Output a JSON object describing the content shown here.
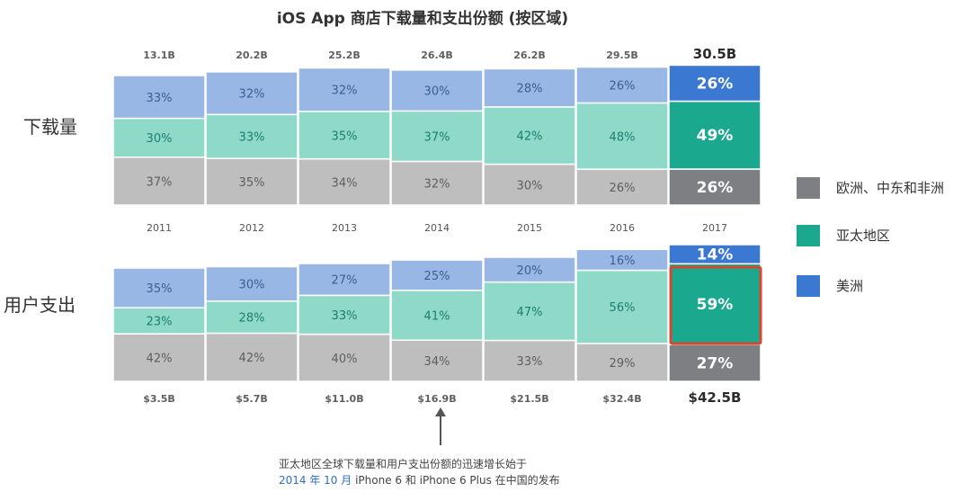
{
  "title": "iOS App 商店下载量和支出份额 (按区域)",
  "row_labels": {
    "downloads": "下载量",
    "spend": "用户支出"
  },
  "legend": [
    {
      "label": "欧洲、中东和非洲",
      "color": "#7d7f82"
    },
    {
      "label": "亚太地区",
      "color": "#1aa98f"
    },
    {
      "label": "美洲",
      "color": "#3b78d1"
    }
  ],
  "colors": {
    "muted": [
      "#bebebe",
      "#8fd9c8",
      "#98b7e5"
    ],
    "highlight": [
      "#7d7f82",
      "#1aa98f",
      "#3b78d1"
    ],
    "muted_text": [
      "#5e5e5e",
      "#1b7f6d",
      "#3a5f91"
    ],
    "callout_border": "#d7472f",
    "arrow": "#555555"
  },
  "annotation": {
    "line1": "亚太地区全球下载量和用户支出份额的迅速增长始于",
    "line2_link": "2014 年 10 月",
    "line2_rest": " iPhone 6 和 iPhone 6 Plus 在中国的发布"
  },
  "chart_data": [
    {
      "type": "bar",
      "stacked": true,
      "normalized": true,
      "name": "下载量",
      "categories": [
        "2011",
        "2012",
        "2013",
        "2014",
        "2015",
        "2016",
        "2017"
      ],
      "totals": [
        "13.1B",
        "20.2B",
        "25.2B",
        "26.4B",
        "26.2B",
        "29.5B",
        "30.5B"
      ],
      "weights": [
        13.1,
        20.2,
        25.2,
        26.4,
        26.2,
        29.5,
        30.5
      ],
      "series": [
        {
          "name": "美洲",
          "values": [
            37,
            35,
            34,
            32,
            30,
            26,
            26
          ]
        },
        {
          "name": "亚太地区",
          "values": [
            30,
            33,
            35,
            37,
            42,
            48,
            49
          ]
        },
        {
          "name": "欧洲、中东和非洲",
          "values": [
            33,
            32,
            32,
            30,
            28,
            26,
            26
          ]
        }
      ],
      "highlight_category": "2017",
      "unit": "%"
    },
    {
      "type": "bar",
      "stacked": true,
      "normalized": true,
      "name": "用户支出",
      "categories": [
        "2011",
        "2012",
        "2013",
        "2014",
        "2015",
        "2016",
        "2017"
      ],
      "totals": [
        "$3.5B",
        "$5.7B",
        "$11.0B",
        "$16.9B",
        "$21.5B",
        "$32.4B",
        "$42.5B"
      ],
      "weights": [
        3.5,
        5.7,
        11.0,
        16.9,
        21.5,
        32.4,
        42.5
      ],
      "series": [
        {
          "name": "美洲",
          "values": [
            42,
            42,
            40,
            34,
            33,
            29,
            27
          ]
        },
        {
          "name": "亚太地区",
          "values": [
            23,
            28,
            33,
            41,
            47,
            56,
            59
          ]
        },
        {
          "name": "欧洲、中东和非洲",
          "values": [
            35,
            30,
            27,
            25,
            20,
            16,
            14
          ]
        }
      ],
      "highlight_category": "2017",
      "unit": "%"
    }
  ]
}
